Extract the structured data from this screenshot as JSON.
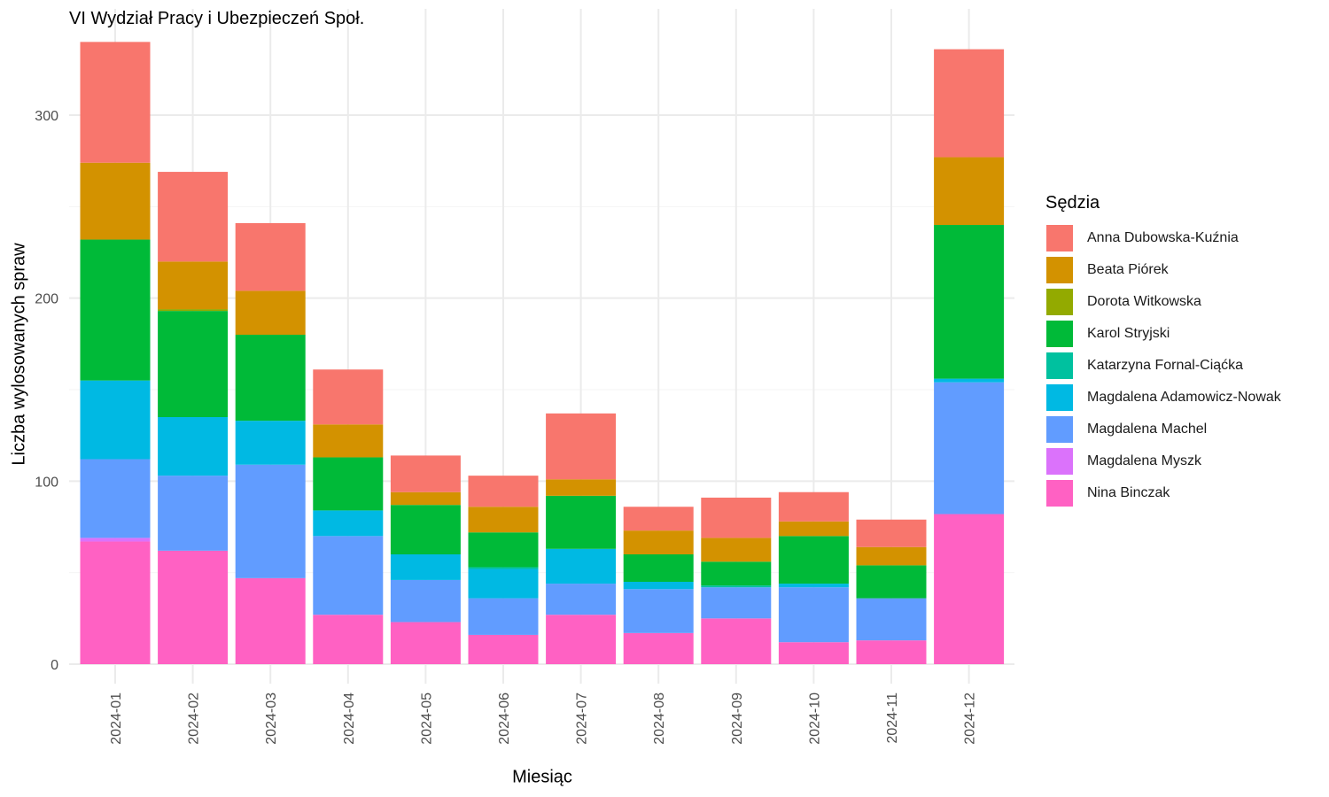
{
  "chart_data": {
    "type": "bar",
    "stacked": true,
    "title": "VI Wydział Pracy i Ubezpieczeń Społ.",
    "xlabel": "Miesiąc",
    "ylabel": "Liczba wylosowanych spraw",
    "legend_title": "Sędzia",
    "legend_position": "right",
    "grid": true,
    "ylim": [
      0,
      340
    ],
    "y_ticks": [
      0,
      100,
      200,
      300
    ],
    "categories": [
      "2024-01",
      "2024-02",
      "2024-03",
      "2024-04",
      "2024-05",
      "2024-06",
      "2024-07",
      "2024-08",
      "2024-09",
      "2024-10",
      "2024-11",
      "2024-12"
    ],
    "series": [
      {
        "name": "Anna Dubowska-Kuźnia",
        "color": "#F8766D",
        "values": [
          66,
          49,
          37,
          30,
          20,
          17,
          36,
          13,
          22,
          16,
          15,
          59
        ]
      },
      {
        "name": "Beata Piórek",
        "color": "#D39200",
        "values": [
          42,
          26,
          24,
          18,
          7,
          14,
          9,
          13,
          13,
          8,
          10,
          37
        ]
      },
      {
        "name": "Dorota Witkowska",
        "color": "#93AA00",
        "values": [
          0,
          1,
          0,
          0,
          0,
          0,
          0,
          0,
          0,
          0,
          0,
          0
        ]
      },
      {
        "name": "Karol Stryjski",
        "color": "#00BA38",
        "values": [
          77,
          58,
          47,
          29,
          27,
          19,
          29,
          15,
          13,
          26,
          18,
          84
        ]
      },
      {
        "name": "Katarzyna Fornal-Ciąćka",
        "color": "#00C19F",
        "values": [
          0,
          0,
          0,
          0,
          0,
          1,
          0,
          0,
          1,
          0,
          0,
          0
        ]
      },
      {
        "name": "Magdalena Adamowicz-Nowak",
        "color": "#00B9E3",
        "values": [
          43,
          32,
          24,
          14,
          14,
          16,
          19,
          4,
          0,
          2,
          0,
          2
        ]
      },
      {
        "name": "Magdalena Machel",
        "color": "#619CFF",
        "values": [
          43,
          41,
          62,
          43,
          23,
          20,
          17,
          24,
          17,
          30,
          23,
          72
        ]
      },
      {
        "name": "Magdalena Myszk",
        "color": "#DB72FB",
        "values": [
          2,
          0,
          0,
          0,
          0,
          0,
          0,
          0,
          0,
          0,
          0,
          0
        ]
      },
      {
        "name": "Nina Binczak",
        "color": "#FF61C3",
        "values": [
          67,
          62,
          47,
          27,
          23,
          16,
          27,
          17,
          25,
          12,
          13,
          82
        ]
      }
    ]
  }
}
